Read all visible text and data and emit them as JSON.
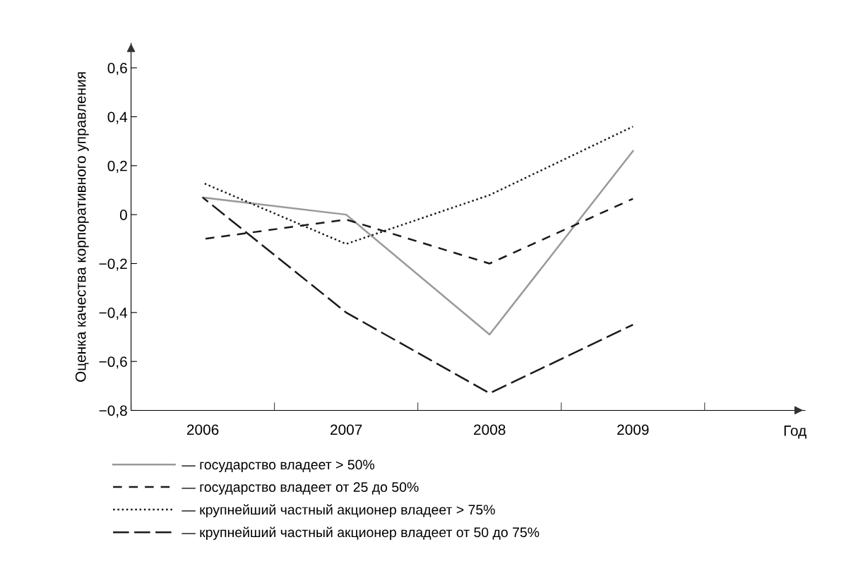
{
  "chart_data": {
    "type": "line",
    "xlabel": "Год",
    "ylabel": "Оценка качества корпоративного управления",
    "categories": [
      "2006",
      "2007",
      "2008",
      "2009"
    ],
    "ylim": [
      -0.8,
      0.7
    ],
    "yticks": [
      {
        "value": -0.8,
        "label": "−0,8"
      },
      {
        "value": -0.6,
        "label": "−0,6"
      },
      {
        "value": -0.4,
        "label": "−0,4"
      },
      {
        "value": -0.2,
        "label": "−0,2"
      },
      {
        "value": 0,
        "label": "0"
      },
      {
        "value": 0.2,
        "label": "0,2"
      },
      {
        "value": 0.4,
        "label": "0,4"
      },
      {
        "value": 0.6,
        "label": "0,6"
      }
    ],
    "legend": "bottom",
    "grid": false,
    "marker": "none",
    "series": [
      {
        "name": "— государство владеет > 50%",
        "color": "#999999",
        "line_style": "solid",
        "values": [
          0.07,
          0.0,
          -0.49,
          0.26
        ]
      },
      {
        "name": "— государство владеет от 25 до 50%",
        "color": "#1a1a1a",
        "line_style": "dashed",
        "values": [
          -0.1,
          -0.02,
          -0.2,
          0.065
        ]
      },
      {
        "name": "— крупнейший частный акционер владеет > 75%",
        "color": "#1a1a1a",
        "line_style": "dotted",
        "values": [
          0.13,
          -0.12,
          0.08,
          0.36
        ]
      },
      {
        "name": "— крупнейший частный акционер владеет от 50 до 75%",
        "color": "#1a1a1a",
        "line_style": "longdash",
        "values": [
          0.07,
          -0.4,
          -0.73,
          -0.45
        ]
      }
    ]
  }
}
